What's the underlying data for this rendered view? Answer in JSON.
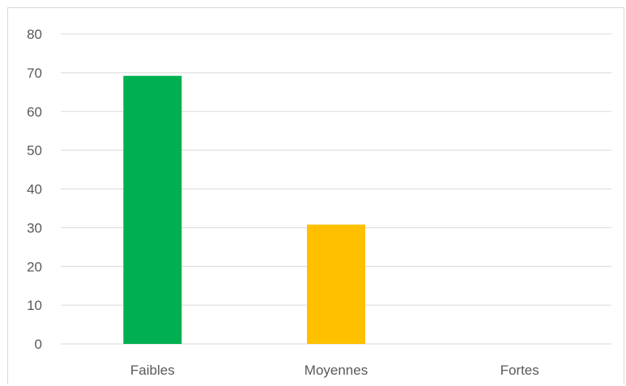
{
  "chart_data": {
    "type": "bar",
    "categories": [
      "Faibles",
      "Moyennes",
      "Fortes"
    ],
    "values": [
      69.2,
      30.8,
      0
    ],
    "colors": [
      "#00b050",
      "#ffc000",
      "#7f7f7f"
    ],
    "ylim": [
      0,
      80
    ],
    "yticks": [
      0,
      10,
      20,
      30,
      40,
      50,
      60,
      70,
      80
    ],
    "grid": true,
    "gridline_color": "#d9d9d9",
    "tick_label_color": "#595959",
    "title": "",
    "xlabel": "",
    "ylabel": ""
  }
}
